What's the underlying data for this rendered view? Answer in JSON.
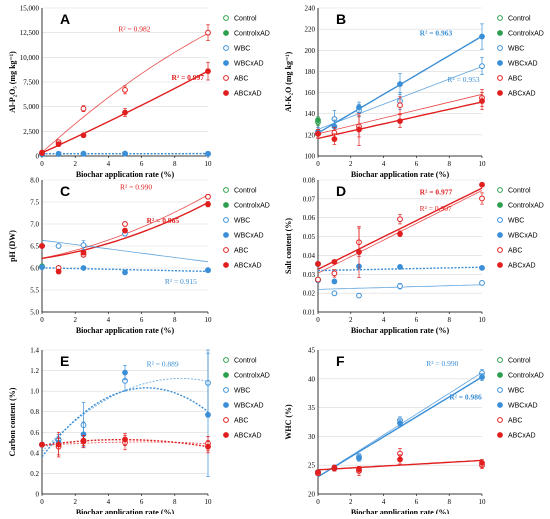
{
  "colors": {
    "control": "#2e9e4f",
    "wbc": "#3b8fd6",
    "abc": "#e11f1f",
    "axis": "#000000"
  },
  "legend_labels": [
    "Control",
    "ControlxAD",
    "WBC",
    "WBCxAD",
    "ABC",
    "ABCxAD"
  ],
  "chart_data": [
    {
      "panel": "A",
      "type": "scatter",
      "xlabel": "Biochar application rate (%)",
      "ylabel": "Al-P₂O₅ (mg kg⁻¹)",
      "xlim": [
        0,
        10
      ],
      "ylim": [
        0,
        15000
      ],
      "xticks": [
        0,
        2,
        4,
        6,
        8,
        10
      ],
      "yticks": [
        0,
        2500,
        5000,
        7500,
        10000,
        12500,
        15000
      ],
      "ytick_labels": [
        "0",
        "2,500",
        "5,000",
        "7,500",
        "10,000",
        "12,500",
        "15,000"
      ],
      "x": [
        0,
        1,
        2.5,
        5,
        10
      ],
      "series": [
        {
          "name": "Control",
          "values": [
            200,
            null,
            null,
            null,
            null
          ],
          "err": [
            50,
            0,
            0,
            0,
            0
          ]
        },
        {
          "name": "ControlxAD",
          "values": [
            250,
            null,
            null,
            null,
            null
          ],
          "err": [
            50,
            0,
            0,
            0,
            0
          ]
        },
        {
          "name": "WBC",
          "values": [
            180,
            200,
            220,
            230,
            210
          ],
          "err": [
            40,
            40,
            40,
            40,
            40
          ]
        },
        {
          "name": "WBCxAD",
          "values": [
            220,
            230,
            240,
            250,
            230
          ],
          "err": [
            40,
            40,
            40,
            40,
            40
          ]
        },
        {
          "name": "ABC",
          "values": [
            350,
            1400,
            4800,
            6700,
            12500
          ],
          "err": [
            100,
            200,
            300,
            400,
            800
          ]
        },
        {
          "name": "ABCxAD",
          "values": [
            300,
            1200,
            2100,
            4400,
            8600
          ],
          "err": [
            100,
            200,
            200,
            400,
            900
          ]
        }
      ],
      "annotations": [
        {
          "series": "ABC",
          "text": "R² = 0.982",
          "x": 4.6,
          "y": 12600
        },
        {
          "series": "ABCxAD",
          "text": "R² = 0.997",
          "x": 7.8,
          "y": 7700
        }
      ]
    },
    {
      "panel": "B",
      "type": "scatter",
      "xlabel": "Biochar application rate (%)",
      "ylabel": "Al-K₂O (mg kg⁻¹)",
      "xlim": [
        0,
        10
      ],
      "ylim": [
        100,
        240
      ],
      "xticks": [
        0,
        2,
        4,
        6,
        8,
        10
      ],
      "yticks": [
        100,
        120,
        140,
        160,
        180,
        200,
        220,
        240
      ],
      "ytick_labels": [
        "100",
        "120",
        "140",
        "160",
        "180",
        "200",
        "220",
        "240"
      ],
      "x": [
        0,
        1,
        2.5,
        5,
        10
      ],
      "series": [
        {
          "name": "Control",
          "values": [
            132,
            null,
            null,
            null,
            null
          ],
          "err": [
            3,
            0,
            0,
            0,
            0
          ]
        },
        {
          "name": "ControlxAD",
          "values": [
            134,
            null,
            null,
            null,
            null
          ],
          "err": [
            3,
            0,
            0,
            0,
            0
          ]
        },
        {
          "name": "WBC",
          "values": [
            121,
            135,
            143,
            152,
            185
          ],
          "err": [
            4,
            8,
            6,
            8,
            8
          ]
        },
        {
          "name": "WBCxAD",
          "values": [
            123,
            128,
            146,
            168,
            213
          ],
          "err": [
            4,
            6,
            5,
            10,
            12
          ]
        },
        {
          "name": "ABC",
          "values": [
            121,
            122,
            128,
            148,
            155
          ],
          "err": [
            4,
            5,
            10,
            8,
            8
          ]
        },
        {
          "name": "ABCxAD",
          "values": [
            121,
            116,
            125,
            133,
            152
          ],
          "err": [
            4,
            5,
            15,
            6,
            8
          ]
        }
      ],
      "annotations": [
        {
          "series": "WBCxAD",
          "text": "R² = 0.963",
          "x": 6.2,
          "y": 214
        },
        {
          "series": "WBC",
          "text": "R² = 0.953",
          "x": 7.9,
          "y": 170
        }
      ]
    },
    {
      "panel": "C",
      "type": "scatter",
      "xlabel": "Biochar application rate (%)",
      "ylabel": "pH (DW)",
      "xlim": [
        0,
        10
      ],
      "ylim": [
        5.0,
        8.0
      ],
      "xticks": [
        0,
        2,
        4,
        6,
        8,
        10
      ],
      "yticks": [
        5.0,
        5.5,
        6.0,
        6.5,
        7.0,
        7.5,
        8.0
      ],
      "ytick_labels": [
        "5.0",
        "5.5",
        "6.0",
        "6.5",
        "7.0",
        "7.5",
        "8.0"
      ],
      "x": [
        0,
        1,
        2.5,
        5,
        10
      ],
      "series": [
        {
          "name": "Control",
          "values": [
            6.02,
            null,
            null,
            null,
            null
          ],
          "err": [
            0.03,
            0,
            0,
            0,
            0
          ]
        },
        {
          "name": "ControlxAD",
          "values": [
            6.04,
            null,
            null,
            null,
            null
          ],
          "err": [
            0.03,
            0,
            0,
            0,
            0
          ]
        },
        {
          "name": "WBC",
          "values": [
            6.5,
            6.5,
            6.52,
            6.78,
            5.95
          ],
          "err": [
            0.03,
            0.03,
            0.1,
            0.05,
            0.03
          ]
        },
        {
          "name": "WBCxAD",
          "values": [
            6.02,
            6.0,
            6.0,
            5.9,
            5.95
          ],
          "err": [
            0.03,
            0.03,
            0.03,
            0.04,
            0.03
          ]
        },
        {
          "name": "ABC",
          "values": [
            6.5,
            6.0,
            6.3,
            7.0,
            7.62
          ],
          "err": [
            0.03,
            0.05,
            0.05,
            0.05,
            0.05
          ]
        },
        {
          "name": "ABCxAD",
          "values": [
            6.5,
            5.92,
            6.35,
            6.85,
            7.45
          ],
          "err": [
            0.03,
            0.05,
            0.05,
            0.05,
            0.06
          ]
        }
      ],
      "annotations": [
        {
          "series": "ABC",
          "text": "R² = 0.990",
          "x": 4.7,
          "y": 7.78
        },
        {
          "series": "ABCxAD",
          "text": "R² = 0.965",
          "x": 6.3,
          "y": 7.02
        },
        {
          "series": "WBC",
          "text": "R² = 0.915",
          "x": 7.4,
          "y": 5.64
        }
      ]
    },
    {
      "panel": "D",
      "type": "scatter",
      "xlabel": "Biochar application rate (%)",
      "ylabel": "Salt content (%)",
      "xlim": [
        0,
        10
      ],
      "ylim": [
        0.01,
        0.08
      ],
      "xticks": [
        0,
        2,
        4,
        6,
        8,
        10
      ],
      "yticks": [
        0.01,
        0.02,
        0.03,
        0.04,
        0.05,
        0.06,
        0.07,
        0.08
      ],
      "ytick_labels": [
        "0.01",
        "0.02",
        "0.03",
        "0.04",
        "0.05",
        "0.06",
        "0.07",
        "0.08"
      ],
      "x": [
        0,
        1,
        2.5,
        5,
        10
      ],
      "series": [
        {
          "name": "Control",
          "values": [
            0.0272,
            null,
            null,
            null,
            null
          ],
          "err": [
            0.0005,
            0,
            0,
            0,
            0
          ]
        },
        {
          "name": "ControlxAD",
          "values": [
            0.0355,
            null,
            null,
            null,
            null
          ],
          "err": [
            0.0005,
            0,
            0,
            0,
            0
          ]
        },
        {
          "name": "WBC",
          "values": [
            0.0268,
            0.0199,
            0.0187,
            0.0237,
            0.0254
          ],
          "err": [
            0.0008,
            0.001,
            0.001,
            0.0015,
            0.001
          ]
        },
        {
          "name": "WBCxAD",
          "values": [
            0.0355,
            0.0262,
            0.0342,
            0.0339,
            0.0334
          ],
          "err": [
            0.0008,
            0.001,
            0.0005,
            0.001,
            0.0008
          ]
        },
        {
          "name": "ABC",
          "values": [
            0.0272,
            0.0305,
            0.047,
            0.0592,
            0.0702
          ],
          "err": [
            0.0008,
            0.002,
            0.0075,
            0.0025,
            0.003
          ]
        },
        {
          "name": "ABCxAD",
          "values": [
            0.0355,
            0.0366,
            0.0418,
            0.0515,
            0.0775
          ],
          "err": [
            0.0008,
            0.001,
            0.0135,
            0.0015,
            0.001
          ]
        }
      ],
      "annotations": [
        {
          "series": "ABCxAD",
          "text": "R² = 0.977",
          "x": 6.2,
          "y": 0.0723
        },
        {
          "series": "ABC",
          "text": "R² = 0.907",
          "x": 6.2,
          "y": 0.0636
        }
      ]
    },
    {
      "panel": "E",
      "type": "scatter",
      "xlabel": "Biochar application rate (%)",
      "ylabel": "Carbon content (%)",
      "xlim": [
        0,
        10
      ],
      "ylim": [
        0,
        1.4
      ],
      "xticks": [
        0,
        2,
        4,
        6,
        8,
        10
      ],
      "yticks": [
        0,
        0.2,
        0.4,
        0.6,
        0.8,
        1.0,
        1.2,
        1.4
      ],
      "ytick_labels": [
        "0",
        "0.2",
        "0.4",
        "0.6",
        "0.8",
        "1.0",
        "1.2",
        "1.4"
      ],
      "x": [
        0,
        1,
        2.5,
        5,
        10
      ],
      "series": [
        {
          "name": "Control",
          "values": [
            0.48,
            null,
            null,
            null,
            null
          ],
          "err": [
            0.02,
            0,
            0,
            0,
            0
          ]
        },
        {
          "name": "ControlxAD",
          "values": [
            0.48,
            null,
            null,
            null,
            null
          ],
          "err": [
            0.02,
            0,
            0,
            0,
            0
          ]
        },
        {
          "name": "WBC",
          "values": [
            0.48,
            0.53,
            0.67,
            1.1,
            1.08
          ],
          "err": [
            0.02,
            0.05,
            0.22,
            0.1,
            0.33
          ]
        },
        {
          "name": "WBCxAD",
          "values": [
            0.48,
            0.5,
            0.58,
            1.18,
            0.77
          ],
          "err": [
            0.02,
            0.05,
            0.12,
            0.07,
            0.6
          ]
        },
        {
          "name": "ABC",
          "values": [
            0.48,
            0.46,
            0.51,
            0.5,
            0.49
          ],
          "err": [
            0.02,
            0.08,
            0.06,
            0.07,
            0.07
          ]
        },
        {
          "name": "ABCxAD",
          "values": [
            0.48,
            0.48,
            0.52,
            0.53,
            0.46
          ],
          "err": [
            0.02,
            0.12,
            0.05,
            0.06,
            0.06
          ]
        }
      ],
      "annotations": [
        {
          "series": "WBC",
          "text": "R² = 0.889",
          "x": 6.3,
          "y": 1.24
        }
      ]
    },
    {
      "panel": "F",
      "type": "scatter",
      "xlabel": "Biochar application rate (%)",
      "ylabel": "WHC (%)",
      "xlim": [
        0,
        10
      ],
      "ylim": [
        20,
        45
      ],
      "xticks": [
        0,
        2,
        4,
        6,
        8,
        10
      ],
      "yticks": [
        20,
        25,
        30,
        35,
        40,
        45
      ],
      "ytick_labels": [
        "20",
        "25",
        "30",
        "35",
        "40",
        "45"
      ],
      "x": [
        0,
        1,
        2.5,
        5,
        10
      ],
      "series": [
        {
          "name": "Control",
          "values": [
            23.6,
            null,
            null,
            null,
            null
          ],
          "err": [
            0.3,
            0,
            0,
            0,
            0
          ]
        },
        {
          "name": "ControlxAD",
          "values": [
            23.8,
            null,
            null,
            null,
            null
          ],
          "err": [
            0.3,
            0,
            0,
            0,
            0
          ]
        },
        {
          "name": "WBC",
          "values": [
            23.6,
            24.6,
            26.5,
            32.8,
            41.0
          ],
          "err": [
            0.3,
            0.4,
            0.5,
            0.6,
            0.6
          ]
        },
        {
          "name": "WBCxAD",
          "values": [
            23.8,
            24.4,
            26.2,
            32.3,
            40.3
          ],
          "err": [
            0.3,
            0.4,
            0.5,
            0.6,
            0.6
          ]
        },
        {
          "name": "ABC",
          "values": [
            23.6,
            24.5,
            24.0,
            27.0,
            25.0
          ],
          "err": [
            0.3,
            0.5,
            0.8,
            0.9,
            0.6
          ]
        },
        {
          "name": "ABCxAD",
          "values": [
            23.8,
            24.5,
            24.3,
            26.0,
            25.4
          ],
          "err": [
            0.3,
            0.5,
            0.5,
            0.8,
            0.6
          ]
        }
      ],
      "annotations": [
        {
          "series": "WBC",
          "text": "R² = 0.990",
          "x": 6.6,
          "y": 42.2
        },
        {
          "series": "WBCxAD",
          "text": "R² = 0.986",
          "x": 8.0,
          "y": 36.4
        }
      ]
    }
  ]
}
